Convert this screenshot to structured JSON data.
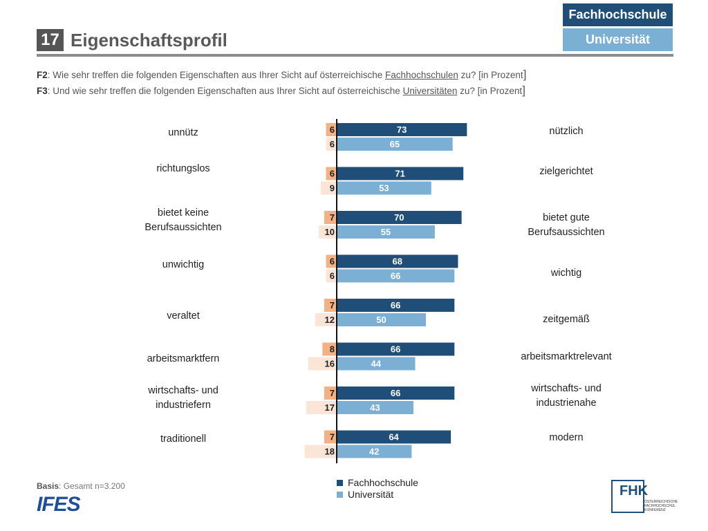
{
  "header": {
    "tag_fh": "Fachhochschule",
    "tag_uni": "Universität",
    "number": "17",
    "title": "Eigenschaftsprofil"
  },
  "questions": {
    "q1_label": "F2",
    "q1_pre": ": Wie sehr treffen die folgenden Eigenschaften aus Ihrer Sicht auf österreichische ",
    "q1_u": "Fachhochschulen",
    "q1_post": " zu? [in Prozent",
    "q2_label": "F3",
    "q2_pre": ": Und wie sehr treffen die folgenden Eigenschaften aus Ihrer Sicht auf österreichische ",
    "q2_u": "Universitäten",
    "q2_post": " zu? [in Prozent",
    "bracket": "]"
  },
  "chart_data": {
    "type": "bar",
    "orientation": "horizontal-diverging",
    "series": [
      {
        "name": "Fachhochschule",
        "color": "#1f4e79",
        "neg_color": "#f4b183",
        "negative": [
          6,
          6,
          7,
          6,
          7,
          8,
          7,
          7
        ],
        "positive": [
          73,
          71,
          70,
          68,
          66,
          66,
          66,
          64
        ]
      },
      {
        "name": "Universität",
        "color": "#7bafd4",
        "neg_color": "#fbe5d6",
        "negative": [
          6,
          9,
          10,
          6,
          12,
          16,
          17,
          18
        ],
        "positive": [
          65,
          53,
          55,
          66,
          50,
          44,
          43,
          42
        ]
      }
    ],
    "left_labels": [
      "unnütz",
      "richtungslos",
      "bietet keine\nBerufsaussichten",
      "unwichtig",
      "veraltet",
      "arbeitsmarktfern",
      "wirtschafts- und\nindustriefern",
      "traditionell"
    ],
    "right_labels": [
      "nützlich",
      "zielgerichtet",
      "bietet gute\nBerufsaussichten",
      "wichtig",
      "zeitgemäß",
      "arbeitsmarktrelevant",
      "wirtschafts- und\nindustrienahe",
      "modern"
    ]
  },
  "legend": {
    "fh": "Fachhochschule",
    "uni": "Universität"
  },
  "footer": {
    "basis_label": "Basis",
    "basis_text": ": Gesamt n=3.200",
    "ifes_logo_text": "IFES",
    "fhk_logo_text": "FHK",
    "fhk_sub1": "ÖSTERREICHISCHE",
    "fhk_sub2": "FACHHOCHSCHUL",
    "fhk_sub3": "KONFERENZ"
  }
}
